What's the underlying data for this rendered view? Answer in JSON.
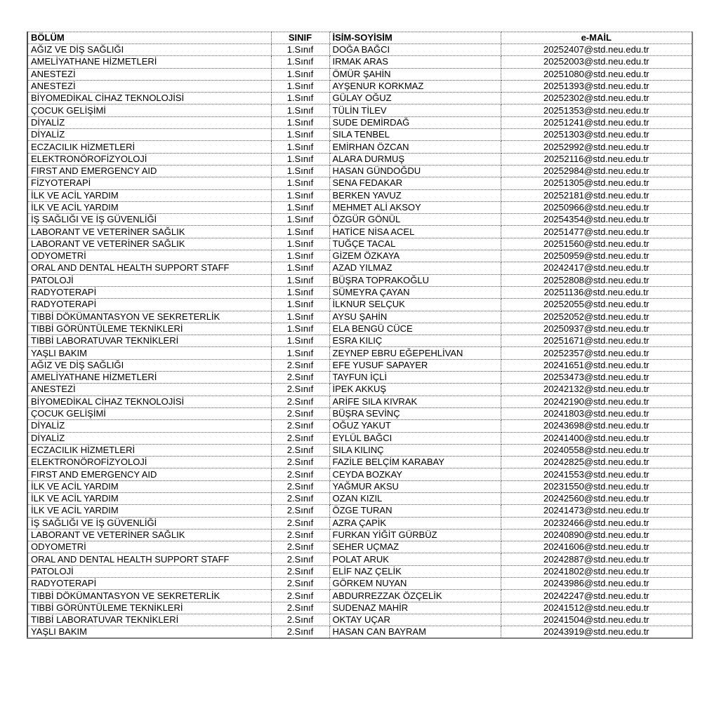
{
  "table": {
    "columns": [
      {
        "key": "bolum",
        "label": "BÖLÜM"
      },
      {
        "key": "sinif",
        "label": "SINIF"
      },
      {
        "key": "isim",
        "label": "İSİM-SOYİSİM"
      },
      {
        "key": "email",
        "label": "e-MAİL"
      }
    ],
    "rows": [
      [
        "AĞIZ VE DİŞ SAĞLIĞI",
        "1.Sınıf",
        "DOĞA BAĞCI",
        "20252407@std.neu.edu.tr"
      ],
      [
        "AMELİYATHANE HİZMETLERİ",
        "1.Sınıf",
        "IRMAK ARAS",
        "20252003@std.neu.edu.tr"
      ],
      [
        "ANESTEZİ",
        "1.Sınıf",
        "ÖMÜR ŞAHİN",
        "20251080@std.neu.edu.tr"
      ],
      [
        "ANESTEZİ",
        "1.Sınıf",
        "AYŞENUR KORKMAZ",
        "20251393@std.neu.edu.tr"
      ],
      [
        "BİYOMEDİKAL CİHAZ TEKNOLOJİSİ",
        "1.Sınıf",
        "GÜLAY OĞUZ",
        "20252302@std.neu.edu.tr"
      ],
      [
        "ÇOCUK GELİŞİMİ",
        "1.Sınıf",
        "TÜLİN TİLEV",
        "20251353@std.neu.edu.tr"
      ],
      [
        "DİYALİZ",
        "1.Sınıf",
        "SUDE DEMİRDAĞ",
        "20251241@std.neu.edu.tr"
      ],
      [
        "DİYALİZ",
        "1.Sınıf",
        "SILA TENBEL",
        "20251303@std.neu.edu.tr"
      ],
      [
        "ECZACILIK HİZMETLERİ",
        "1.Sınıf",
        "EMİRHAN ÖZCAN",
        "20252992@std.neu.edu.tr"
      ],
      [
        "ELEKTRONÖROFİZYOLOJİ",
        "1.Sınıf",
        "ALARA DURMUŞ",
        "20252116@std.neu.edu.tr"
      ],
      [
        "FIRST AND EMERGENCY AID",
        "1.Sınıf",
        "HASAN GÜNDOĞDU",
        "20252984@std.neu.edu.tr"
      ],
      [
        "FİZYOTERAPİ",
        "1.Sınıf",
        "SENA FEDAKAR",
        "20251305@std.neu.edu.tr"
      ],
      [
        "İLK VE ACİL YARDIM",
        "1.Sınıf",
        "BERKEN YAVUZ",
        "20252181@std.neu.edu.tr"
      ],
      [
        "İLK VE ACİL YARDIM",
        "1.Sınıf",
        "MEHMET ALİ AKSOY",
        "20250966@std.neu.edu.tr"
      ],
      [
        "İŞ SAĞLIĞI VE İŞ GÜVENLİĞİ",
        "1.Sınıf",
        "ÖZGÜR GÖNÜL",
        "20254354@std.neu.edu.tr"
      ],
      [
        "LABORANT VE VETERİNER SAĞLIK",
        "1.Sınıf",
        "HATİCE NİSA ACEL",
        "20251477@std.neu.edu.tr"
      ],
      [
        "LABORANT VE VETERİNER SAĞLIK",
        "1.Sınıf",
        "TUĞÇE TACAL",
        "20251560@std.neu.edu.tr"
      ],
      [
        "ODYOMETRİ",
        "1.Sınıf",
        "GİZEM ÖZKAYA",
        "20250959@std.neu.edu.tr"
      ],
      [
        "ORAL AND DENTAL HEALTH SUPPORT STAFF",
        "1.Sınıf",
        "AZAD YILMAZ",
        "20242417@std.neu.edu.tr"
      ],
      [
        "PATOLOJİ",
        "1.Sınıf",
        "BÜŞRA TOPRAKOĞLU",
        "20252808@std.neu.edu.tr"
      ],
      [
        "RADYOTERAPİ",
        "1.Sınıf",
        "SÜMEYRA ÇAYAN",
        "20251136@std.neu.edu.tr"
      ],
      [
        "RADYOTERAPİ",
        "1.Sınıf",
        "İLKNUR SELÇUK",
        "20252055@std.neu.edu.tr"
      ],
      [
        "TIBBİ DÖKÜMANTASYON VE SEKRETERLİK",
        "1.Sınıf",
        "AYSU ŞAHİN",
        "20252052@std.neu.edu.tr"
      ],
      [
        "TIBBİ GÖRÜNTÜLEME TEKNİKLERİ",
        "1.Sınıf",
        "ELA BENGÜ CÜCE",
        "20250937@std.neu.edu.tr"
      ],
      [
        "TIBBİ LABORATUVAR TEKNİKLERİ",
        "1.Sınıf",
        "ESRA KILIÇ",
        "20251671@std.neu.edu.tr"
      ],
      [
        "YAŞLI BAKIM",
        "1.Sınıf",
        "ZEYNEP EBRU EĞEPEHLİVAN",
        "20252357@std.neu.edu.tr"
      ],
      [
        "AĞIZ VE DİŞ SAĞLIĞI",
        "2.Sınıf",
        "EFE YUSUF SAPAYER",
        "20241651@std.neu.edu.tr"
      ],
      [
        "AMELİYATHANE HİZMETLERİ",
        "2.Sınıf",
        "TAYFUN İÇLİ",
        "20253473@std.neu.edu.tr"
      ],
      [
        "ANESTEZİ",
        "2.Sınıf",
        "İPEK AKKUŞ",
        "20242132@std.neu.edu.tr"
      ],
      [
        "BİYOMEDİKAL CİHAZ TEKNOLOJİSİ",
        "2.Sınıf",
        "ARİFE SILA KIVRAK",
        "20242190@std.neu.edu.tr"
      ],
      [
        "ÇOCUK GELİŞİMİ",
        "2.Sınıf",
        "BÜŞRA SEVİNÇ",
        "20241803@std.neu.edu.tr"
      ],
      [
        "DİYALİZ",
        "2.Sınıf",
        "OĞUZ YAKUT",
        "20243698@std.neu.edu.tr"
      ],
      [
        "DİYALİZ",
        "2.Sınıf",
        "EYLÜL BAĞCI",
        "20241400@std.neu.edu.tr"
      ],
      [
        "ECZACILIK HİZMETLERİ",
        "2.Sınıf",
        "SILA KILINÇ",
        "20240558@std.neu.edu.tr"
      ],
      [
        "ELEKTRONÖROFİZYOLOJİ",
        "2.Sınıf",
        "FAZİLE BELÇİM KARABAY",
        "20242825@std.neu.edu.tr"
      ],
      [
        "FIRST AND EMERGENCY AID",
        "2.Sınıf",
        "CEYDA BOZKAY",
        "20241553@std.neu.edu.tr"
      ],
      [
        "İLK VE ACİL YARDIM",
        "2.Sınıf",
        "YAĞMUR AKSU",
        "20231550@std.neu.edu.tr"
      ],
      [
        "İLK VE ACİL YARDIM",
        "2.Sınıf",
        "OZAN KIZIL",
        "20242560@std.neu.edu.tr"
      ],
      [
        "İLK VE ACİL YARDIM",
        "2.Sınıf",
        "ÖZGE TURAN",
        "20241473@std.neu.edu.tr"
      ],
      [
        "İŞ SAĞLIĞI VE İŞ GÜVENLİĞİ",
        "2.Sınıf",
        "AZRA ÇAPİK",
        "20232466@std.neu.edu.tr"
      ],
      [
        "LABORANT VE VETERİNER SAĞLIK",
        "2.Sınıf",
        "FURKAN YİĞİT GÜRBÜZ",
        "20240890@std.neu.edu.tr"
      ],
      [
        "ODYOMETRİ",
        "2.Sınıf",
        "SEHER UÇMAZ",
        "20241606@std.neu.edu.tr"
      ],
      [
        "ORAL AND DENTAL HEALTH SUPPORT STAFF",
        "2.Sınıf",
        "POLAT ARUK",
        "20242887@std.neu.edu.tr"
      ],
      [
        "PATOLOJİ",
        "2.Sınıf",
        "ELİF NAZ ÇELİK",
        "20241802@std.neu.edu.tr"
      ],
      [
        "RADYOTERAPİ",
        "2.Sınıf",
        "GÖRKEM NUYAN",
        "20243986@std.neu.edu.tr"
      ],
      [
        "TIBBİ DÖKÜMANTASYON VE SEKRETERLİK",
        "2.Sınıf",
        "ABDURREZZAK ÖZÇELİK",
        "20242247@std.neu.edu.tr"
      ],
      [
        "TIBBİ GÖRÜNTÜLEME TEKNİKLERİ",
        "2.Sınıf",
        "SUDENAZ MAHİR",
        "20241512@std.neu.edu.tr"
      ],
      [
        "TIBBİ LABORATUVAR TEKNİKLERİ",
        "2.Sınıf",
        "OKTAY UÇAR",
        "20241504@std.neu.edu.tr"
      ],
      [
        "YAŞLI BAKIM",
        "2.Sınıf",
        "HASAN CAN BAYRAM",
        "20243919@std.neu.edu.tr"
      ]
    ]
  },
  "colors": {
    "text": "#000000",
    "grid_dotted": "#595959",
    "outer_border": "#7f7f7f",
    "background": "#ffffff"
  }
}
